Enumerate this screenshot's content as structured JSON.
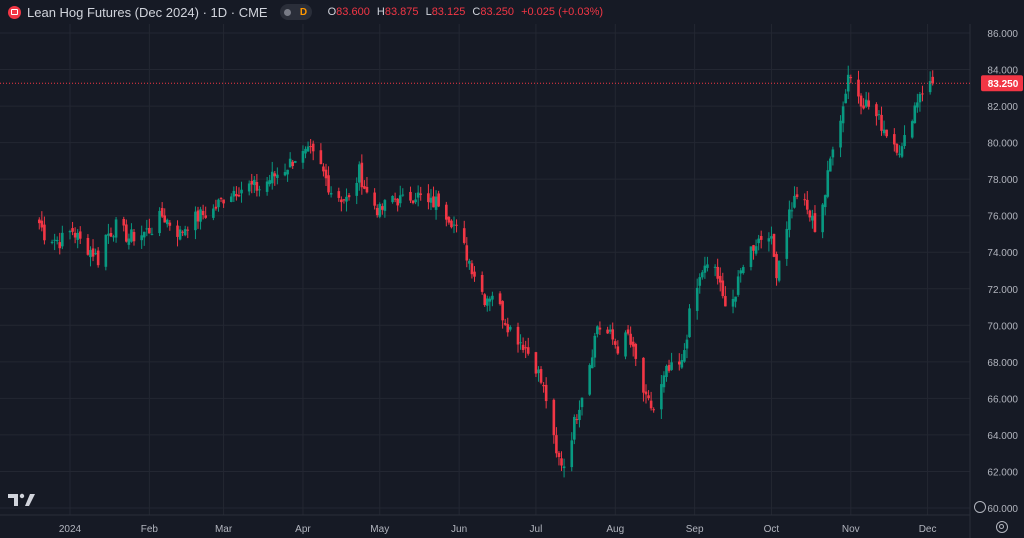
{
  "header": {
    "title": "Lean Hog Futures (Dec 2024) · 1D · CME",
    "badge_letter": "D",
    "open_label": "O",
    "open": "83.600",
    "high_label": "H",
    "high": "83.875",
    "low_label": "L",
    "low": "83.125",
    "close_label": "C",
    "close": "83.250",
    "change": "+0.025 (+0.03%)"
  },
  "colors": {
    "up": "#089981",
    "down": "#f23645",
    "background": "#161a25",
    "grid": "#232732",
    "text": "#b2b5be"
  },
  "icons": {
    "logo": "tradingview-logo-icon",
    "settings": "gear-icon",
    "scale": "auto-scale-icon"
  },
  "chart_data": {
    "type": "candlestick",
    "ylim": [
      60,
      86
    ],
    "y_ticks": [
      "86.000",
      "84.000",
      "82.000",
      "80.000",
      "78.000",
      "76.000",
      "74.000",
      "72.000",
      "70.000",
      "68.000",
      "66.000",
      "64.000",
      "62.000",
      "60.000"
    ],
    "x_ticks": [
      "2024",
      "Feb",
      "Mar",
      "Apr",
      "May",
      "Jun",
      "Jul",
      "Aug",
      "Sep",
      "Oct",
      "Nov",
      "Dec"
    ],
    "last_price": "83.250",
    "last_price_value": 83.25,
    "grid": true,
    "anchors": [
      [
        "2023-12-20",
        75.6
      ],
      [
        "2023-12-22",
        75.0
      ],
      [
        "2023-12-28",
        74.6
      ],
      [
        "2024-01-02",
        75.2
      ],
      [
        "2024-01-05",
        74.6
      ],
      [
        "2024-01-10",
        74.0
      ],
      [
        "2024-01-12",
        73.6
      ],
      [
        "2024-01-15",
        74.9
      ],
      [
        "2024-01-19",
        75.4
      ],
      [
        "2024-01-24",
        74.8
      ],
      [
        "2024-01-29",
        75.0
      ],
      [
        "2024-02-02",
        75.3
      ],
      [
        "2024-02-06",
        76.0
      ],
      [
        "2024-02-09",
        75.6
      ],
      [
        "2024-02-13",
        75.0
      ],
      [
        "2024-02-16",
        75.6
      ],
      [
        "2024-02-21",
        76.0
      ],
      [
        "2024-02-26",
        76.3
      ],
      [
        "2024-03-01",
        77.0
      ],
      [
        "2024-03-05",
        77.4
      ],
      [
        "2024-03-11",
        77.6
      ],
      [
        "2024-03-15",
        77.5
      ],
      [
        "2024-03-19",
        78.0
      ],
      [
        "2024-03-25",
        78.6
      ],
      [
        "2024-03-29",
        79.2
      ],
      [
        "2024-04-04",
        79.4
      ],
      [
        "2024-04-08",
        78.6
      ],
      [
        "2024-04-12",
        77.4
      ],
      [
        "2024-04-16",
        77.0
      ],
      [
        "2024-04-19",
        76.8
      ],
      [
        "2024-04-23",
        78.4
      ],
      [
        "2024-04-26",
        77.2
      ],
      [
        "2024-05-01",
        76.2
      ],
      [
        "2024-05-06",
        77.0
      ],
      [
        "2024-05-10",
        76.8
      ],
      [
        "2024-05-15",
        77.2
      ],
      [
        "2024-05-20",
        76.6
      ],
      [
        "2024-05-24",
        76.8
      ],
      [
        "2024-05-29",
        75.8
      ],
      [
        "2024-06-03",
        74.2
      ],
      [
        "2024-06-06",
        73.2
      ],
      [
        "2024-06-11",
        71.5
      ],
      [
        "2024-06-14",
        71.8
      ],
      [
        "2024-06-18",
        70.6
      ],
      [
        "2024-06-21",
        69.8
      ],
      [
        "2024-06-26",
        69.0
      ],
      [
        "2024-07-01",
        67.8
      ],
      [
        "2024-07-05",
        66.0
      ],
      [
        "2024-07-09",
        62.8
      ],
      [
        "2024-07-12",
        62.4
      ],
      [
        "2024-07-17",
        65.2
      ],
      [
        "2024-07-22",
        68.0
      ],
      [
        "2024-07-25",
        70.0
      ],
      [
        "2024-07-30",
        69.4
      ],
      [
        "2024-08-02",
        68.8
      ],
      [
        "2024-08-06",
        69.4
      ],
      [
        "2024-08-09",
        68.0
      ],
      [
        "2024-08-13",
        65.8
      ],
      [
        "2024-08-16",
        65.4
      ],
      [
        "2024-08-21",
        67.4
      ],
      [
        "2024-08-27",
        67.8
      ],
      [
        "2024-08-30",
        70.5
      ],
      [
        "2024-09-04",
        73.0
      ],
      [
        "2024-09-09",
        73.2
      ],
      [
        "2024-09-12",
        71.4
      ],
      [
        "2024-09-17",
        71.6
      ],
      [
        "2024-09-20",
        73.5
      ],
      [
        "2024-09-25",
        74.6
      ],
      [
        "2024-09-30",
        75.2
      ],
      [
        "2024-10-03",
        73.0
      ],
      [
        "2024-10-08",
        76.2
      ],
      [
        "2024-10-11",
        77.2
      ],
      [
        "2024-10-16",
        76.0
      ],
      [
        "2024-10-18",
        75.4
      ],
      [
        "2024-10-22",
        77.2
      ],
      [
        "2024-10-25",
        80.0
      ],
      [
        "2024-10-29",
        82.0
      ],
      [
        "2024-10-31",
        83.8
      ],
      [
        "2024-11-05",
        82.4
      ],
      [
        "2024-11-08",
        82.0
      ],
      [
        "2024-11-13",
        81.0
      ],
      [
        "2024-11-18",
        80.0
      ],
      [
        "2024-11-21",
        79.6
      ],
      [
        "2024-11-25",
        81.6
      ],
      [
        "2024-11-28",
        82.8
      ],
      [
        "2024-12-03",
        83.25
      ]
    ]
  }
}
